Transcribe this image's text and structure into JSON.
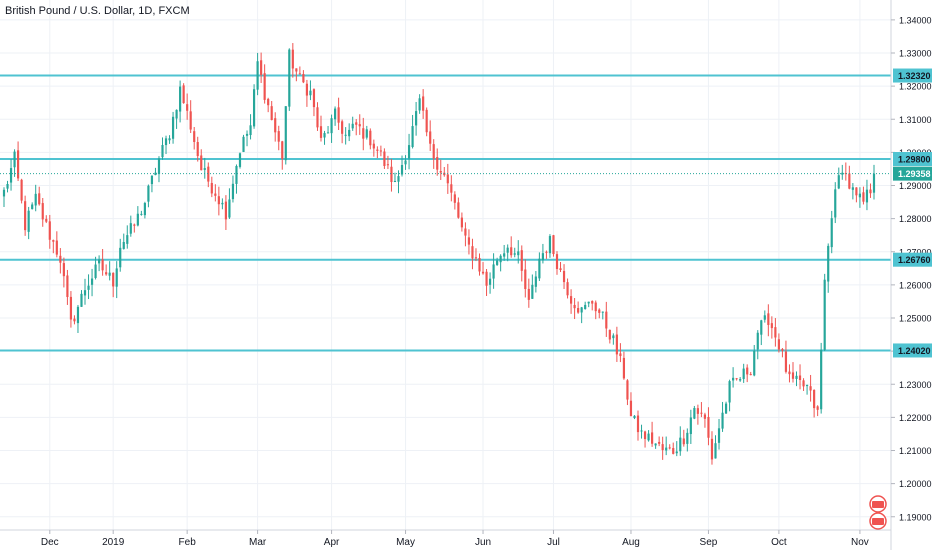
{
  "header": {
    "title": "British Pound / U.S. Dollar, 1D, FXCM"
  },
  "colors": {
    "up": "#26a69a",
    "down": "#ef5350",
    "level_line": "#4fc3d1",
    "last_price_bg": "#26a69a",
    "level_label_bg": "#4fc3d1",
    "grid": "#eef1f6",
    "axis_text": "#131722"
  },
  "chart_data": {
    "type": "candlestick",
    "title": "British Pound / U.S. Dollar, 1D, FXCM",
    "xlabel": "",
    "ylabel": "",
    "ylim": [
      1.186,
      1.346
    ],
    "grid": true,
    "y_ticks": [
      "1.34000",
      "1.33000",
      "1.32000",
      "1.31000",
      "1.30000",
      "1.29000",
      "1.28000",
      "1.27000",
      "1.26000",
      "1.25000",
      "1.24000",
      "1.23000",
      "1.22000",
      "1.21000",
      "1.20000",
      "1.19000"
    ],
    "x_ticks": [
      {
        "label": "Dec",
        "i": 13
      },
      {
        "label": "2019",
        "i": 31
      },
      {
        "label": "Feb",
        "i": 52
      },
      {
        "label": "Mar",
        "i": 72
      },
      {
        "label": "Apr",
        "i": 93
      },
      {
        "label": "May",
        "i": 114
      },
      {
        "label": "Jun",
        "i": 136
      },
      {
        "label": "Jul",
        "i": 156
      },
      {
        "label": "Aug",
        "i": 178
      },
      {
        "label": "Sep",
        "i": 200
      },
      {
        "label": "Oct",
        "i": 220
      },
      {
        "label": "Nov",
        "i": 243
      }
    ],
    "horizontal_levels": [
      {
        "value": 1.3232,
        "label": "1.32320"
      },
      {
        "value": 1.298,
        "label": "1.29800"
      },
      {
        "value": 1.2676,
        "label": "1.26760"
      },
      {
        "value": 1.2402,
        "label": "1.24020"
      }
    ],
    "last_price": {
      "value": 1.29358,
      "label": "1.29358"
    },
    "key_points": [
      {
        "i": 0,
        "c": 1.288
      },
      {
        "i": 3,
        "c": 1.298
      },
      {
        "i": 6,
        "c": 1.278
      },
      {
        "i": 9,
        "c": 1.286
      },
      {
        "i": 13,
        "c": 1.275
      },
      {
        "i": 16,
        "c": 1.268
      },
      {
        "i": 19,
        "c": 1.248
      },
      {
        "i": 23,
        "c": 1.259
      },
      {
        "i": 27,
        "c": 1.266
      },
      {
        "i": 31,
        "c": 1.261
      },
      {
        "i": 33,
        "c": 1.272
      },
      {
        "i": 37,
        "c": 1.278
      },
      {
        "i": 40,
        "c": 1.285
      },
      {
        "i": 44,
        "c": 1.298
      },
      {
        "i": 47,
        "c": 1.306
      },
      {
        "i": 50,
        "c": 1.319
      },
      {
        "i": 53,
        "c": 1.308
      },
      {
        "i": 56,
        "c": 1.295
      },
      {
        "i": 60,
        "c": 1.288
      },
      {
        "i": 63,
        "c": 1.282
      },
      {
        "i": 67,
        "c": 1.301
      },
      {
        "i": 70,
        "c": 1.308
      },
      {
        "i": 72,
        "c": 1.327
      },
      {
        "i": 74,
        "c": 1.318
      },
      {
        "i": 77,
        "c": 1.306
      },
      {
        "i": 79,
        "c": 1.299
      },
      {
        "i": 81,
        "c": 1.329
      },
      {
        "i": 84,
        "c": 1.322
      },
      {
        "i": 87,
        "c": 1.318
      },
      {
        "i": 90,
        "c": 1.303
      },
      {
        "i": 94,
        "c": 1.311
      },
      {
        "i": 97,
        "c": 1.305
      },
      {
        "i": 100,
        "c": 1.308
      },
      {
        "i": 104,
        "c": 1.304
      },
      {
        "i": 107,
        "c": 1.299
      },
      {
        "i": 111,
        "c": 1.29
      },
      {
        "i": 115,
        "c": 1.303
      },
      {
        "i": 118,
        "c": 1.315
      },
      {
        "i": 121,
        "c": 1.301
      },
      {
        "i": 125,
        "c": 1.293
      },
      {
        "i": 128,
        "c": 1.284
      },
      {
        "i": 131,
        "c": 1.273
      },
      {
        "i": 134,
        "c": 1.268
      },
      {
        "i": 137,
        "c": 1.26
      },
      {
        "i": 140,
        "c": 1.268
      },
      {
        "i": 143,
        "c": 1.272
      },
      {
        "i": 146,
        "c": 1.268
      },
      {
        "i": 149,
        "c": 1.254
      },
      {
        "i": 152,
        "c": 1.268
      },
      {
        "i": 155,
        "c": 1.273
      },
      {
        "i": 158,
        "c": 1.264
      },
      {
        "i": 161,
        "c": 1.256
      },
      {
        "i": 164,
        "c": 1.252
      },
      {
        "i": 167,
        "c": 1.255
      },
      {
        "i": 170,
        "c": 1.25
      },
      {
        "i": 173,
        "c": 1.243
      },
      {
        "i": 176,
        "c": 1.233
      },
      {
        "i": 178,
        "c": 1.22
      },
      {
        "i": 181,
        "c": 1.215
      },
      {
        "i": 184,
        "c": 1.213
      },
      {
        "i": 187,
        "c": 1.21
      },
      {
        "i": 190,
        "c": 1.21
      },
      {
        "i": 193,
        "c": 1.214
      },
      {
        "i": 196,
        "c": 1.223
      },
      {
        "i": 199,
        "c": 1.219
      },
      {
        "i": 201,
        "c": 1.208
      },
      {
        "i": 203,
        "c": 1.217
      },
      {
        "i": 206,
        "c": 1.229
      },
      {
        "i": 209,
        "c": 1.232
      },
      {
        "i": 212,
        "c": 1.235
      },
      {
        "i": 214,
        "c": 1.246
      },
      {
        "i": 217,
        "c": 1.25
      },
      {
        "i": 220,
        "c": 1.242
      },
      {
        "i": 223,
        "c": 1.231
      },
      {
        "i": 226,
        "c": 1.23
      },
      {
        "i": 228,
        "c": 1.229
      },
      {
        "i": 231,
        "c": 1.221
      },
      {
        "i": 232,
        "c": 1.24
      },
      {
        "i": 233,
        "c": 1.261
      },
      {
        "i": 235,
        "c": 1.282
      },
      {
        "i": 237,
        "c": 1.292
      },
      {
        "i": 238,
        "c": 1.296
      },
      {
        "i": 240,
        "c": 1.29
      },
      {
        "i": 242,
        "c": 1.286
      },
      {
        "i": 244,
        "c": 1.285
      },
      {
        "i": 246,
        "c": 1.289
      },
      {
        "i": 247,
        "c": 1.2936
      }
    ],
    "n_candles": 248
  }
}
